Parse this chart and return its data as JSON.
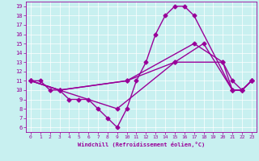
{
  "title": "",
  "xlabel": "Windchill (Refroidissement éolien,°C)",
  "xlim": [
    -0.5,
    23.5
  ],
  "ylim": [
    5.5,
    19.5
  ],
  "xticks": [
    0,
    1,
    2,
    3,
    4,
    5,
    6,
    7,
    8,
    9,
    10,
    11,
    12,
    13,
    14,
    15,
    16,
    17,
    18,
    19,
    20,
    21,
    22,
    23
  ],
  "yticks": [
    6,
    7,
    8,
    9,
    10,
    11,
    12,
    13,
    14,
    15,
    16,
    17,
    18,
    19
  ],
  "bg_color": "#c8f0f0",
  "line_color": "#990099",
  "line_width": 1.0,
  "marker": "D",
  "marker_size": 2.5,
  "lines": [
    {
      "x": [
        0,
        1,
        2,
        3,
        4,
        5,
        6,
        7,
        8,
        9,
        10,
        11,
        12,
        13,
        14,
        15,
        16,
        17,
        21,
        22,
        23
      ],
      "y": [
        11,
        11,
        10,
        10,
        9,
        9,
        9,
        8,
        7,
        6,
        8,
        11,
        13,
        16,
        18,
        19,
        19,
        18,
        10,
        10,
        11
      ]
    },
    {
      "x": [
        0,
        3,
        10,
        15,
        20,
        21,
        22,
        23
      ],
      "y": [
        11,
        10,
        11,
        13,
        13,
        11,
        10,
        11
      ]
    },
    {
      "x": [
        0,
        3,
        10,
        17,
        20,
        21,
        22,
        23
      ],
      "y": [
        11,
        10,
        11,
        15,
        13,
        10,
        10,
        11
      ]
    },
    {
      "x": [
        0,
        3,
        9,
        15,
        18,
        21,
        22,
        23
      ],
      "y": [
        11,
        10,
        8,
        13,
        15,
        10,
        10,
        11
      ]
    }
  ]
}
